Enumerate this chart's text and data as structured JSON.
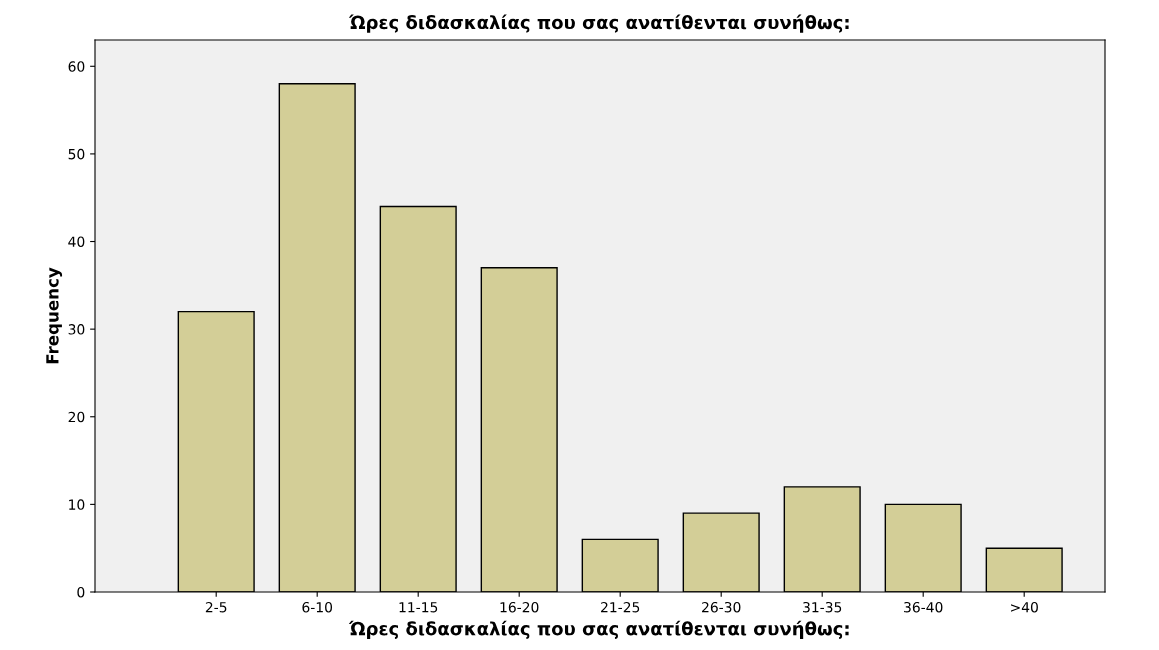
{
  "chart_data": {
    "type": "bar",
    "title": "Ώρες διδασκαλίας που σας ανατίθενται συνήθως:",
    "xlabel": "Ώρες διδασκαλίας που σας ανατίθενται συνήθως:",
    "ylabel": "Frequency",
    "categories": [
      "2-5",
      "6-10",
      "11-15",
      "16-20",
      "21-25",
      "26-30",
      "31-35",
      "36-40",
      ">40"
    ],
    "values": [
      32,
      58,
      44,
      37,
      6,
      9,
      12,
      10,
      5
    ],
    "color": "#d3ce97",
    "ylim": [
      0,
      63
    ],
    "yticks": [
      0,
      10,
      20,
      30,
      40,
      50,
      60
    ],
    "grid": false,
    "legend": false
  }
}
